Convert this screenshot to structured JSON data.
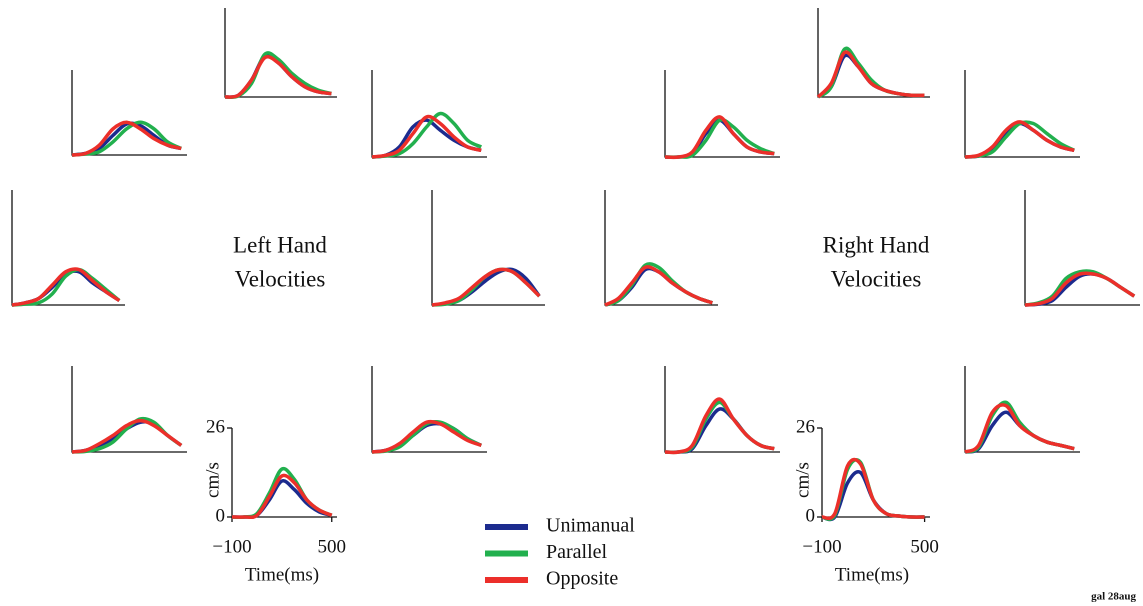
{
  "chart_data": [
    {
      "type": "line",
      "x": [
        -100,
        -25,
        50,
        125,
        200,
        275,
        350,
        425,
        500
      ],
      "xlim": [
        -100,
        500
      ],
      "ylim": [
        0,
        26
      ],
      "series": [
        {
          "values": [
            0,
            0.5,
            5,
            12,
            10,
            6,
            3,
            1.5,
            1
          ]
        },
        {
          "values": [
            0,
            0.3,
            4,
            12.5,
            11,
            7,
            4,
            2,
            1
          ]
        },
        {
          "values": [
            0,
            0.5,
            5,
            11.5,
            10,
            6,
            3,
            1.5,
            1
          ]
        }
      ]
    },
    {
      "type": "line",
      "x": [
        -100,
        -25,
        50,
        125,
        200,
        275,
        350,
        425,
        500
      ],
      "xlim": [
        -100,
        500
      ],
      "ylim": [
        0,
        26
      ],
      "series": [
        {
          "values": [
            0,
            0.5,
            2,
            6,
            9.5,
            9,
            6,
            3,
            2
          ]
        },
        {
          "values": [
            0,
            0.3,
            1,
            4,
            8,
            10,
            8,
            4,
            2
          ]
        },
        {
          "values": [
            0,
            0.5,
            3,
            8,
            10,
            8,
            5,
            3,
            2
          ]
        }
      ]
    },
    {
      "type": "line",
      "x": [
        -100,
        -25,
        50,
        125,
        200,
        275,
        350,
        425,
        500
      ],
      "xlim": [
        -100,
        500
      ],
      "ylim": [
        0,
        26
      ],
      "series": [
        {
          "values": [
            0,
            0.5,
            3,
            9,
            11,
            8,
            5,
            3,
            2
          ]
        },
        {
          "values": [
            0,
            0.3,
            1,
            4,
            9,
            13,
            10,
            5,
            3
          ]
        },
        {
          "values": [
            0,
            0.5,
            2,
            7,
            12,
            10,
            6,
            3,
            2
          ]
        }
      ]
    },
    {
      "type": "line",
      "x": [
        -100,
        -25,
        50,
        125,
        200,
        275,
        350,
        425,
        500
      ],
      "xlim": [
        -100,
        500
      ],
      "ylim": [
        0,
        26
      ],
      "series": [
        {
          "values": [
            0,
            0.5,
            1.5,
            4,
            7,
            7.5,
            5,
            3,
            1
          ]
        },
        {
          "values": [
            0,
            0.2,
            0.5,
            2.5,
            6.5,
            8,
            6,
            3.5,
            1
          ]
        },
        {
          "values": [
            0,
            0.5,
            1.5,
            4.5,
            7.5,
            8,
            5.5,
            3,
            1
          ]
        }
      ]
    },
    {
      "type": "line",
      "x": [
        -100,
        -25,
        50,
        125,
        200,
        275,
        350,
        425,
        500
      ],
      "xlim": [
        -100,
        500
      ],
      "ylim": [
        0,
        26
      ],
      "series": [
        {
          "values": [
            0,
            0.3,
            1,
            3,
            5.5,
            7.5,
            8,
            6,
            2
          ]
        },
        {
          "values": [
            0,
            0.2,
            1,
            3.5,
            6.5,
            8,
            7.5,
            5,
            2
          ]
        },
        {
          "values": [
            0,
            0.5,
            1.5,
            4,
            6.5,
            8,
            7.5,
            5,
            2
          ]
        }
      ]
    },
    {
      "type": "line",
      "x": [
        -100,
        -25,
        50,
        125,
        200,
        275,
        350,
        425,
        500
      ],
      "xlim": [
        -100,
        500
      ],
      "ylim": [
        0,
        26
      ],
      "series": [
        {
          "values": [
            0,
            0.5,
            2,
            4,
            7,
            9,
            8.5,
            5,
            2
          ]
        },
        {
          "values": [
            0,
            0.2,
            1,
            3,
            7,
            10,
            9,
            5,
            2
          ]
        },
        {
          "values": [
            0,
            0.5,
            2.5,
            5,
            8,
            9.5,
            8,
            5,
            2
          ]
        }
      ]
    },
    {
      "type": "line",
      "x": [
        -100,
        -25,
        50,
        125,
        200,
        275,
        350,
        425,
        500
      ],
      "xlim": [
        -100,
        500
      ],
      "ylim": [
        0,
        26
      ],
      "series": [
        {
          "values": [
            0,
            0.5,
            2,
            5,
            8,
            8.5,
            7,
            4,
            2
          ]
        },
        {
          "values": [
            0,
            0.3,
            1.5,
            5,
            8.5,
            9,
            7,
            4,
            2
          ]
        },
        {
          "values": [
            0,
            0.5,
            2.5,
            6,
            9,
            8.5,
            6,
            3.5,
            2
          ]
        }
      ]
    },
    {
      "type": "line",
      "x": [
        -100,
        -25,
        50,
        125,
        200,
        275,
        350,
        425,
        500
      ],
      "xlim": [
        -100,
        500
      ],
      "ylim": [
        0,
        26
      ],
      "xticks": [
        {
          "value": -100,
          "label": "−100"
        },
        500
      ],
      "yticks": [
        0,
        26
      ],
      "xlabel": "Time(ms)",
      "ylabel": "cm/s",
      "series": [
        {
          "values": [
            0,
            0,
            0.5,
            5,
            10.5,
            8,
            4,
            1.5,
            0.5
          ]
        },
        {
          "values": [
            0,
            0,
            1,
            7,
            14,
            11,
            5,
            2,
            0.5
          ]
        },
        {
          "values": [
            0,
            0,
            0.5,
            6,
            12,
            10,
            5,
            2,
            0.5
          ]
        }
      ]
    },
    {
      "type": "line",
      "x": [
        -100,
        -25,
        50,
        125,
        200,
        275,
        350,
        425,
        500
      ],
      "xlim": [
        -100,
        500
      ],
      "ylim": [
        0,
        26
      ],
      "series": [
        {
          "values": [
            0,
            3,
            12,
            9,
            4,
            2,
            1,
            0.5,
            0.5
          ]
        },
        {
          "values": [
            0,
            3,
            14,
            10,
            5,
            2,
            1,
            0.5,
            0.5
          ]
        },
        {
          "values": [
            0,
            4,
            13,
            9,
            4,
            2,
            1,
            0.5,
            0.5
          ]
        }
      ]
    },
    {
      "type": "line",
      "x": [
        -100,
        -25,
        50,
        125,
        200,
        275,
        350,
        425,
        500
      ],
      "xlim": [
        -100,
        500
      ],
      "ylim": [
        0,
        26
      ],
      "series": [
        {
          "values": [
            0,
            0,
            1,
            7,
            11,
            7,
            3,
            1.5,
            1
          ]
        },
        {
          "values": [
            0,
            0,
            0.5,
            5,
            11,
            9,
            5,
            2.5,
            1
          ]
        },
        {
          "values": [
            0,
            0,
            1.5,
            8,
            12,
            7,
            3,
            1.5,
            1
          ]
        }
      ]
    },
    {
      "type": "line",
      "x": [
        -100,
        -25,
        50,
        125,
        200,
        275,
        350,
        425,
        500
      ],
      "xlim": [
        -100,
        500
      ],
      "ylim": [
        0,
        26
      ],
      "series": [
        {
          "values": [
            0,
            0.3,
            2,
            7,
            10,
            8,
            5,
            3,
            2
          ]
        },
        {
          "values": [
            0,
            0.3,
            1.5,
            6,
            10,
            10,
            7,
            4,
            2
          ]
        },
        {
          "values": [
            0,
            0.5,
            3,
            8,
            10.5,
            8,
            5,
            3,
            2
          ]
        }
      ]
    },
    {
      "type": "line",
      "x": [
        -100,
        -25,
        50,
        125,
        200,
        275,
        350,
        425,
        500
      ],
      "xlim": [
        -100,
        500
      ],
      "ylim": [
        0,
        26
      ],
      "series": [
        {
          "values": [
            0,
            1,
            4,
            8,
            7.5,
            5,
            3,
            1.5,
            0.5
          ]
        },
        {
          "values": [
            0,
            1,
            4.5,
            9,
            8.5,
            5.5,
            3,
            1.5,
            0.5
          ]
        },
        {
          "values": [
            0,
            1.5,
            5,
            8.5,
            7.5,
            5,
            3,
            1.5,
            0.5
          ]
        }
      ]
    },
    {
      "type": "line",
      "x": [
        -100,
        -25,
        50,
        125,
        200,
        275,
        350,
        425,
        500
      ],
      "xlim": [
        -100,
        500
      ],
      "ylim": [
        0,
        26
      ],
      "series": [
        {
          "values": [
            0,
            0.2,
            1,
            4,
            6.5,
            7,
            6,
            4,
            2
          ]
        },
        {
          "values": [
            0,
            0.5,
            2,
            6,
            7.5,
            7.5,
            6,
            4,
            2
          ]
        },
        {
          "values": [
            0,
            0.3,
            1.5,
            5,
            7,
            7,
            6,
            4,
            2
          ]
        }
      ]
    },
    {
      "type": "line",
      "x": [
        -100,
        -25,
        50,
        125,
        200,
        275,
        350,
        425,
        500
      ],
      "xlim": [
        -100,
        500
      ],
      "ylim": [
        0,
        26
      ],
      "series": [
        {
          "values": [
            0,
            0,
            1,
            8,
            13,
            10,
            5,
            2,
            1
          ]
        },
        {
          "values": [
            0,
            0,
            1.5,
            10,
            15,
            10,
            5,
            2,
            1
          ]
        },
        {
          "values": [
            0,
            0,
            2,
            11,
            16,
            10,
            5,
            2,
            1
          ]
        }
      ]
    },
    {
      "type": "line",
      "x": [
        -100,
        -25,
        50,
        125,
        200,
        275,
        350,
        425,
        500
      ],
      "xlim": [
        -100,
        500
      ],
      "ylim": [
        0,
        26
      ],
      "series": [
        {
          "values": [
            0,
            1,
            8,
            12,
            8,
            5,
            3,
            2,
            1
          ]
        },
        {
          "values": [
            0,
            1.5,
            11,
            15,
            9,
            5,
            3,
            2,
            1
          ]
        },
        {
          "values": [
            0,
            2,
            12,
            14,
            8,
            5,
            3,
            2,
            1
          ]
        }
      ]
    },
    {
      "type": "line",
      "x": [
        -100,
        -25,
        50,
        125,
        200,
        275,
        350,
        425,
        500
      ],
      "xlim": [
        -100,
        500
      ],
      "ylim": [
        0,
        26
      ],
      "xticks": [
        {
          "value": -100,
          "label": "−100"
        },
        500
      ],
      "yticks": [
        0,
        26
      ],
      "xlabel": "Time(ms)",
      "ylabel": "cm/s",
      "series": [
        {
          "values": [
            0,
            0,
            10,
            13,
            5,
            1,
            0.3,
            0,
            0
          ]
        },
        {
          "values": [
            0,
            0.5,
            14,
            16,
            5,
            1,
            0.3,
            0,
            0
          ]
        },
        {
          "values": [
            0,
            1,
            15,
            15.5,
            5,
            1,
            0.3,
            0,
            0
          ]
        }
      ]
    }
  ],
  "annotations": [
    "Left Hand",
    "Velocities",
    "Right Hand",
    "Velocities"
  ],
  "legend": [
    {
      "name": "Unimanual",
      "color": "#1c2b8e"
    },
    {
      "name": "Parallel",
      "color": "#22b04e"
    },
    {
      "name": "Opposite",
      "color": "#ec2f2a"
    }
  ],
  "footer": "gal 28aug"
}
